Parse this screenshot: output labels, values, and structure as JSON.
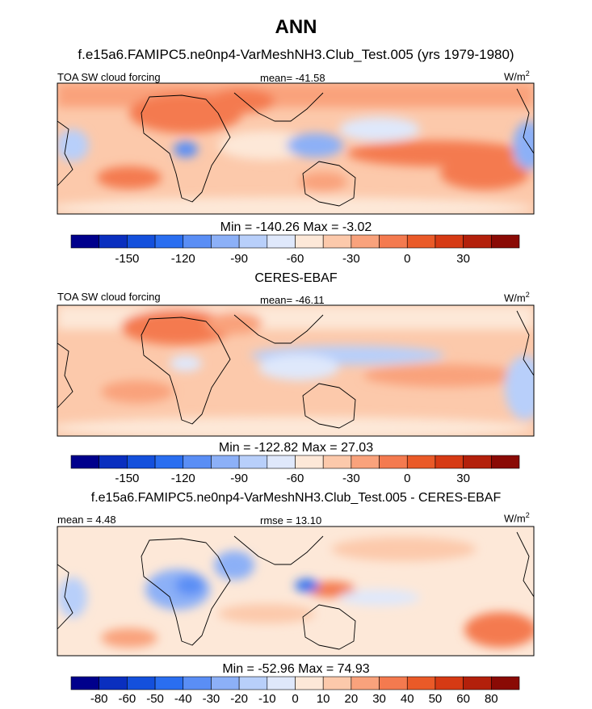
{
  "figure": {
    "title": "ANN",
    "panel1": {
      "heading": "f.e15a6.FAMIPC5.ne0np4-VarMeshNH3.Club_Test.005 (yrs 1979-1980)",
      "left_label": "TOA SW cloud forcing",
      "center_label": "mean= -41.58",
      "unit": "W/m",
      "unit_sup": "2",
      "minmax": "Min = -140.26 Max =  -3.02"
    },
    "panel2": {
      "heading": "CERES-EBAF",
      "left_label": "TOA SW cloud forcing",
      "center_label": "mean= -46.11",
      "unit": "W/m",
      "unit_sup": "2",
      "minmax": "Min = -122.82 Max =  27.03"
    },
    "panel3": {
      "heading": "f.e15a6.FAMIPC5.ne0np4-VarMeshNH3.Club_Test.005 - CERES-EBAF",
      "left_label": "mean =   4.48",
      "center_label": "rmse =  13.10",
      "unit": "W/m",
      "unit_sup": "2",
      "minmax": "Min = -52.96 Max =  74.93"
    }
  },
  "chart_data": [
    {
      "type": "heatmap",
      "title": "f.e15a6.FAMIPC5.ne0np4-VarMeshNH3.Club_Test.005 (yrs 1979-1980)",
      "variable": "TOA SW cloud forcing",
      "mean": -41.58,
      "min": -140.26,
      "max": -3.02,
      "colorbar_ticks": [
        "-150",
        "-120",
        "-90",
        "-60",
        "-30",
        "0",
        "30"
      ],
      "colorbar_colors": [
        "#00008c",
        "#0a2fbf",
        "#1450dc",
        "#2a6ef0",
        "#5a8ef5",
        "#8cb0f7",
        "#b8cffa",
        "#dfe8fb",
        "#fde8d8",
        "#fcc9ab",
        "#f9a27c",
        "#f47a4f",
        "#ea5a28",
        "#d63a14",
        "#b3200b",
        "#8a0a05"
      ]
    },
    {
      "type": "heatmap",
      "title": "CERES-EBAF",
      "variable": "TOA SW cloud forcing",
      "mean": -46.11,
      "min": -122.82,
      "max": 27.03,
      "colorbar_ticks": [
        "-150",
        "-120",
        "-90",
        "-60",
        "-30",
        "0",
        "30"
      ],
      "colorbar_colors": [
        "#00008c",
        "#0a2fbf",
        "#1450dc",
        "#2a6ef0",
        "#5a8ef5",
        "#8cb0f7",
        "#b8cffa",
        "#dfe8fb",
        "#fde8d8",
        "#fcc9ab",
        "#f9a27c",
        "#f47a4f",
        "#ea5a28",
        "#d63a14",
        "#b3200b",
        "#8a0a05"
      ]
    },
    {
      "type": "heatmap",
      "title": "f.e15a6.FAMIPC5.ne0np4-VarMeshNH3.Club_Test.005 - CERES-EBAF",
      "mean": 4.48,
      "rmse": 13.1,
      "min": -52.96,
      "max": 74.93,
      "colorbar_ticks": [
        "-80",
        "-60",
        "-50",
        "-40",
        "-30",
        "-20",
        "-10",
        "0",
        "10",
        "20",
        "30",
        "40",
        "50",
        "60",
        "80"
      ],
      "colorbar_colors": [
        "#00008c",
        "#0a2fbf",
        "#1450dc",
        "#2a6ef0",
        "#5a8ef5",
        "#8cb0f7",
        "#b8cffa",
        "#dfe8fb",
        "#fde8d8",
        "#fcc9ab",
        "#f9a27c",
        "#f47a4f",
        "#ea5a28",
        "#d63a14",
        "#b3200b",
        "#8a0a05"
      ]
    }
  ]
}
